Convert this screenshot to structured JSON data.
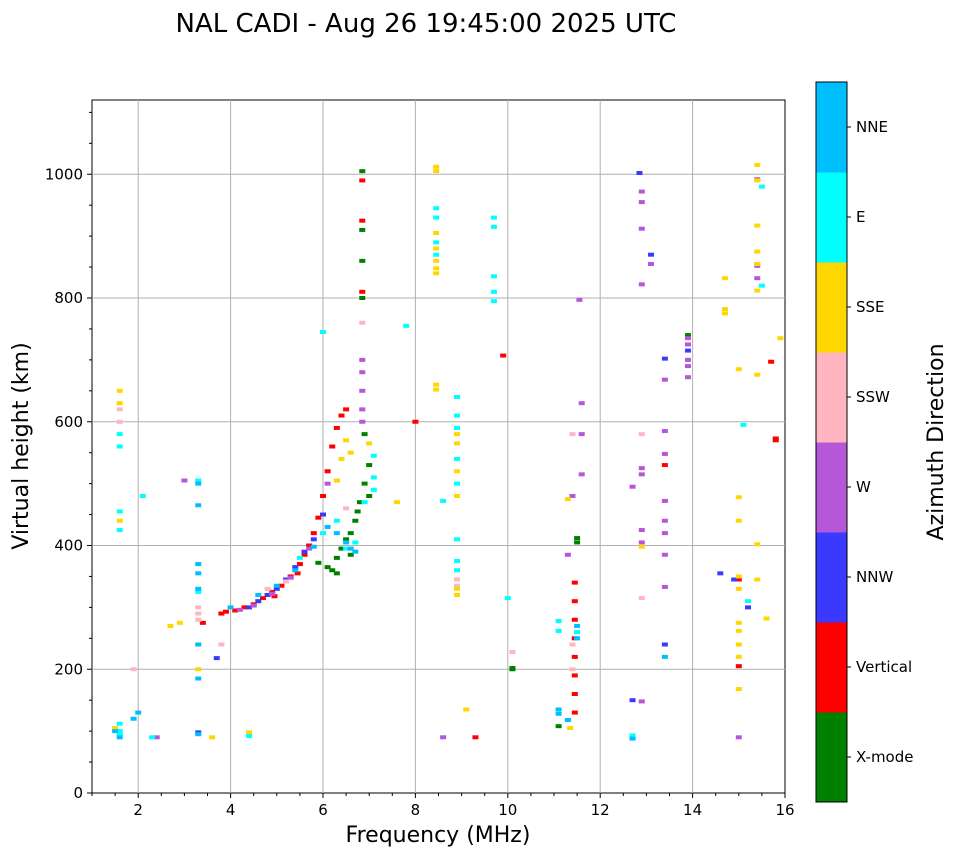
{
  "chart_data": {
    "type": "scatter",
    "title": "NAL CADI - Aug 26 19:45:00 2025 UTC",
    "xlabel": "Frequency (MHz)",
    "ylabel": "Virtual height (km)",
    "xlim": [
      1,
      16
    ],
    "ylim": [
      0,
      1120
    ],
    "xticks": [
      2,
      4,
      6,
      8,
      10,
      12,
      14,
      16
    ],
    "yticks": [
      0,
      200,
      400,
      600,
      800,
      1000
    ],
    "grid": true,
    "colorbar_label": "Azimuth Direction",
    "colorbar": [
      {
        "name": "X-mode",
        "color": "#008000"
      },
      {
        "name": "Vertical",
        "color": "#ff0000"
      },
      {
        "name": "NNW",
        "color": "#3a3aff"
      },
      {
        "name": "W",
        "color": "#b557d8"
      },
      {
        "name": "SSW",
        "color": "#ffb6c1"
      },
      {
        "name": "SSE",
        "color": "#ffd700"
      },
      {
        "name": "E",
        "color": "#00ffff"
      },
      {
        "name": "NNE",
        "color": "#00bfff"
      }
    ],
    "series": [
      {
        "name": "X-mode",
        "points": [
          [
            5.9,
            372
          ],
          [
            6.1,
            365
          ],
          [
            6.2,
            360
          ],
          [
            6.3,
            380
          ],
          [
            6.4,
            395
          ],
          [
            6.5,
            410
          ],
          [
            6.6,
            420
          ],
          [
            6.7,
            440
          ],
          [
            6.8,
            470
          ],
          [
            6.9,
            500
          ],
          [
            7.0,
            530
          ],
          [
            6.85,
            1005
          ],
          [
            6.85,
            910
          ],
          [
            6.85,
            860
          ],
          [
            6.85,
            800
          ],
          [
            6.9,
            580
          ],
          [
            10.1,
            200
          ],
          [
            10.1,
            202
          ],
          [
            11.1,
            108
          ],
          [
            11.5,
            412
          ],
          [
            11.5,
            405
          ],
          [
            13.9,
            740
          ],
          [
            6.3,
            355
          ],
          [
            6.6,
            385
          ],
          [
            7.0,
            480
          ],
          [
            6.75,
            455
          ]
        ]
      },
      {
        "name": "Vertical",
        "points": [
          [
            3.8,
            290
          ],
          [
            3.9,
            293
          ],
          [
            4.1,
            295
          ],
          [
            4.3,
            300
          ],
          [
            4.5,
            305
          ],
          [
            4.7,
            315
          ],
          [
            4.9,
            325
          ],
          [
            5.1,
            335
          ],
          [
            5.3,
            350
          ],
          [
            5.5,
            370
          ],
          [
            5.6,
            385
          ],
          [
            5.7,
            400
          ],
          [
            5.8,
            420
          ],
          [
            5.9,
            445
          ],
          [
            6.0,
            480
          ],
          [
            6.1,
            520
          ],
          [
            6.2,
            560
          ],
          [
            6.3,
            590
          ],
          [
            6.4,
            610
          ],
          [
            6.5,
            620
          ],
          [
            6.85,
            990
          ],
          [
            6.85,
            925
          ],
          [
            6.85,
            810
          ],
          [
            8.0,
            600
          ],
          [
            9.3,
            90
          ],
          [
            9.9,
            707
          ],
          [
            11.45,
            340
          ],
          [
            11.45,
            310
          ],
          [
            11.45,
            280
          ],
          [
            11.45,
            250
          ],
          [
            11.45,
            220
          ],
          [
            11.45,
            190
          ],
          [
            11.45,
            160
          ],
          [
            11.45,
            130
          ],
          [
            15.7,
            697
          ],
          [
            15.8,
            573
          ],
          [
            15.8,
            570
          ],
          [
            15.0,
            345
          ],
          [
            15.0,
            205
          ],
          [
            13.4,
            530
          ],
          [
            3.4,
            275
          ],
          [
            5.45,
            355
          ],
          [
            4.95,
            318
          ]
        ]
      },
      {
        "name": "NNW",
        "points": [
          [
            4.4,
            300
          ],
          [
            4.6,
            310
          ],
          [
            4.8,
            320
          ],
          [
            5.0,
            330
          ],
          [
            5.2,
            345
          ],
          [
            5.4,
            365
          ],
          [
            5.6,
            390
          ],
          [
            5.8,
            410
          ],
          [
            6.0,
            450
          ],
          [
            3.7,
            218
          ],
          [
            3.3,
            98
          ],
          [
            12.7,
            150
          ],
          [
            12.85,
            1002
          ],
          [
            13.1,
            870
          ],
          [
            13.4,
            702
          ],
          [
            13.4,
            240
          ],
          [
            14.6,
            355
          ],
          [
            14.9,
            345
          ],
          [
            15.2,
            300
          ],
          [
            13.9,
            715
          ]
        ]
      },
      {
        "name": "W",
        "points": [
          [
            4.2,
            296
          ],
          [
            4.5,
            303
          ],
          [
            4.9,
            322
          ],
          [
            5.3,
            348
          ],
          [
            5.7,
            395
          ],
          [
            6.1,
            500
          ],
          [
            6.85,
            700
          ],
          [
            6.85,
            680
          ],
          [
            6.85,
            650
          ],
          [
            6.85,
            620
          ],
          [
            6.85,
            600
          ],
          [
            8.6,
            90
          ],
          [
            11.3,
            385
          ],
          [
            11.4,
            480
          ],
          [
            11.6,
            630
          ],
          [
            11.6,
            580
          ],
          [
            11.6,
            515
          ],
          [
            11.55,
            797
          ],
          [
            12.7,
            495
          ],
          [
            12.9,
            972
          ],
          [
            12.9,
            955
          ],
          [
            12.9,
            912
          ],
          [
            12.9,
            822
          ],
          [
            12.9,
            525
          ],
          [
            12.9,
            515
          ],
          [
            12.9,
            425
          ],
          [
            12.9,
            405
          ],
          [
            12.9,
            148
          ],
          [
            13.1,
            855
          ],
          [
            13.4,
            668
          ],
          [
            13.4,
            585
          ],
          [
            13.4,
            548
          ],
          [
            13.4,
            472
          ],
          [
            13.4,
            440
          ],
          [
            13.4,
            420
          ],
          [
            13.4,
            385
          ],
          [
            13.4,
            333
          ],
          [
            13.9,
            735
          ],
          [
            13.9,
            725
          ],
          [
            13.9,
            700
          ],
          [
            13.9,
            690
          ],
          [
            13.9,
            672
          ],
          [
            15.0,
            90
          ],
          [
            15.4,
            832
          ],
          [
            15.4,
            992
          ],
          [
            15.4,
            852
          ],
          [
            2.4,
            90
          ],
          [
            3.0,
            505
          ]
        ]
      },
      {
        "name": "SSW",
        "points": [
          [
            1.6,
            620
          ],
          [
            1.6,
            600
          ],
          [
            1.9,
            200
          ],
          [
            3.3,
            240
          ],
          [
            3.3,
            290
          ],
          [
            3.3,
            300
          ],
          [
            3.3,
            280
          ],
          [
            3.8,
            240
          ],
          [
            6.85,
            760
          ],
          [
            8.9,
            345
          ],
          [
            8.9,
            335
          ],
          [
            10.1,
            228
          ],
          [
            11.4,
            580
          ],
          [
            11.4,
            240
          ],
          [
            11.4,
            200
          ],
          [
            12.9,
            580
          ],
          [
            12.9,
            315
          ],
          [
            4.8,
            330
          ],
          [
            5.2,
            342
          ],
          [
            6.5,
            460
          ]
        ]
      },
      {
        "name": "SSE",
        "points": [
          [
            1.5,
            105
          ],
          [
            1.6,
            650
          ],
          [
            1.6,
            630
          ],
          [
            1.6,
            440
          ],
          [
            2.7,
            270
          ],
          [
            2.9,
            275
          ],
          [
            3.3,
            200
          ],
          [
            3.6,
            90
          ],
          [
            4.4,
            98
          ],
          [
            6.3,
            505
          ],
          [
            6.4,
            540
          ],
          [
            6.5,
            570
          ],
          [
            6.6,
            550
          ],
          [
            7.0,
            565
          ],
          [
            7.6,
            470
          ],
          [
            8.45,
            1012
          ],
          [
            8.45,
            1005
          ],
          [
            8.45,
            905
          ],
          [
            8.45,
            880
          ],
          [
            8.45,
            860
          ],
          [
            8.45,
            848
          ],
          [
            8.45,
            840
          ],
          [
            8.45,
            660
          ],
          [
            8.45,
            652
          ],
          [
            8.9,
            580
          ],
          [
            8.9,
            565
          ],
          [
            8.9,
            520
          ],
          [
            8.9,
            480
          ],
          [
            8.9,
            330
          ],
          [
            8.9,
            320
          ],
          [
            9.1,
            135
          ],
          [
            11.3,
            475
          ],
          [
            11.35,
            105
          ],
          [
            12.9,
            398
          ],
          [
            14.7,
            832
          ],
          [
            14.7,
            782
          ],
          [
            14.7,
            775
          ],
          [
            15.0,
            685
          ],
          [
            15.0,
            478
          ],
          [
            15.0,
            440
          ],
          [
            15.0,
            350
          ],
          [
            15.0,
            330
          ],
          [
            15.0,
            275
          ],
          [
            15.0,
            262
          ],
          [
            15.0,
            240
          ],
          [
            15.0,
            220
          ],
          [
            15.0,
            168
          ],
          [
            15.4,
            1015
          ],
          [
            15.4,
            990
          ],
          [
            15.4,
            917
          ],
          [
            15.4,
            875
          ],
          [
            15.4,
            855
          ],
          [
            15.4,
            812
          ],
          [
            15.4,
            676
          ],
          [
            15.4,
            402
          ],
          [
            15.4,
            345
          ],
          [
            15.6,
            282
          ],
          [
            15.9,
            735
          ]
        ]
      },
      {
        "name": "E",
        "points": [
          [
            1.6,
            112
          ],
          [
            1.6,
            100
          ],
          [
            1.6,
            95
          ],
          [
            1.6,
            580
          ],
          [
            1.6,
            560
          ],
          [
            1.6,
            455
          ],
          [
            1.6,
            425
          ],
          [
            2.1,
            480
          ],
          [
            2.3,
            90
          ],
          [
            3.3,
            505
          ],
          [
            3.3,
            325
          ],
          [
            4.4,
            92
          ],
          [
            5.5,
            380
          ],
          [
            6.0,
            420
          ],
          [
            6.3,
            440
          ],
          [
            6.5,
            395
          ],
          [
            6.7,
            405
          ],
          [
            6.9,
            470
          ],
          [
            7.1,
            545
          ],
          [
            7.1,
            510
          ],
          [
            7.1,
            490
          ],
          [
            8.45,
            945
          ],
          [
            8.45,
            930
          ],
          [
            8.45,
            890
          ],
          [
            8.45,
            870
          ],
          [
            8.9,
            640
          ],
          [
            8.9,
            610
          ],
          [
            8.9,
            590
          ],
          [
            8.9,
            540
          ],
          [
            8.9,
            500
          ],
          [
            8.9,
            410
          ],
          [
            8.9,
            375
          ],
          [
            8.9,
            360
          ],
          [
            9.7,
            930
          ],
          [
            9.7,
            915
          ],
          [
            9.7,
            835
          ],
          [
            9.7,
            810
          ],
          [
            9.7,
            795
          ],
          [
            10.0,
            315
          ],
          [
            11.1,
            278
          ],
          [
            11.1,
            262
          ],
          [
            11.3,
            118
          ],
          [
            11.5,
            260
          ],
          [
            12.7,
            93
          ],
          [
            12.7,
            88
          ],
          [
            15.1,
            595
          ],
          [
            15.2,
            310
          ],
          [
            15.5,
            980
          ],
          [
            15.5,
            820
          ],
          [
            6.0,
            745
          ],
          [
            7.8,
            755
          ],
          [
            8.6,
            472
          ]
        ]
      },
      {
        "name": "NNE",
        "points": [
          [
            1.5,
            100
          ],
          [
            1.6,
            90
          ],
          [
            1.9,
            120
          ],
          [
            2.0,
            130
          ],
          [
            3.3,
            500
          ],
          [
            3.3,
            465
          ],
          [
            3.3,
            370
          ],
          [
            3.3,
            355
          ],
          [
            3.3,
            330
          ],
          [
            3.3,
            240
          ],
          [
            3.3,
            185
          ],
          [
            3.3,
            95
          ],
          [
            4.0,
            300
          ],
          [
            4.6,
            320
          ],
          [
            5.0,
            335
          ],
          [
            5.4,
            360
          ],
          [
            5.8,
            398
          ],
          [
            6.1,
            430
          ],
          [
            6.3,
            420
          ],
          [
            6.5,
            405
          ],
          [
            6.6,
            395
          ],
          [
            6.7,
            390
          ],
          [
            11.1,
            135
          ],
          [
            11.1,
            128
          ],
          [
            11.3,
            118
          ],
          [
            11.5,
            270
          ],
          [
            11.5,
            250
          ],
          [
            12.7,
            88
          ],
          [
            13.4,
            220
          ]
        ]
      }
    ]
  }
}
